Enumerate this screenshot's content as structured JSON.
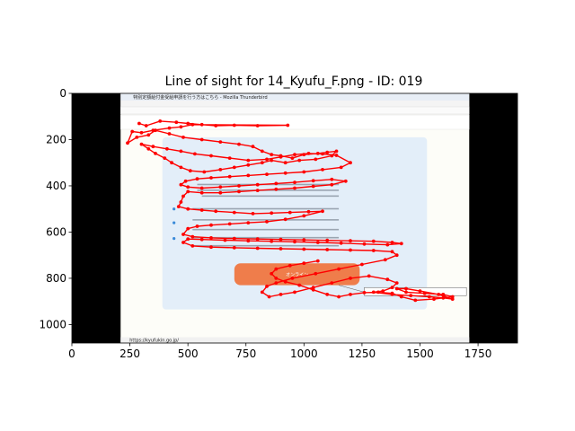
{
  "chart_data": {
    "type": "line",
    "title": "Line of sight for 14_Kyufu_F.png - ID: 019",
    "xlabel": "",
    "ylabel": "",
    "xlim": [
      0,
      1920
    ],
    "ylim": [
      1080,
      0
    ],
    "x_ticks": [
      0,
      250,
      500,
      750,
      1000,
      1250,
      1500,
      1750
    ],
    "y_ticks": [
      0,
      200,
      400,
      600,
      800,
      1000
    ],
    "background_image": {
      "x_range": [
        210,
        1712
      ],
      "y_range": [
        0,
        1080
      ],
      "letterbox_color": "#000000",
      "browser_title": "特別定額給付金受給申請を行う方はこちら - Mozilla Thunderbird",
      "status_url": "https://kyufukin.go.jp/",
      "button_label": "オンライン"
    },
    "series": [
      {
        "color": "#ff0000",
        "points": [
          [
            290,
            130
          ],
          [
            320,
            140
          ],
          [
            380,
            120
          ],
          [
            450,
            125
          ],
          [
            500,
            130
          ],
          [
            560,
            135
          ],
          [
            620,
            140
          ],
          [
            700,
            138
          ],
          [
            800,
            140
          ],
          [
            930,
            138
          ],
          [
            520,
            135
          ],
          [
            470,
            145
          ],
          [
            420,
            150
          ],
          [
            350,
            160
          ],
          [
            300,
            170
          ],
          [
            260,
            165
          ],
          [
            240,
            215
          ],
          [
            280,
            190
          ],
          [
            330,
            180
          ],
          [
            360,
            160
          ],
          [
            420,
            175
          ],
          [
            480,
            190
          ],
          [
            560,
            200
          ],
          [
            640,
            210
          ],
          [
            720,
            220
          ],
          [
            780,
            230
          ],
          [
            820,
            250
          ],
          [
            860,
            265
          ],
          [
            900,
            270
          ],
          [
            950,
            280
          ],
          [
            1000,
            265
          ],
          [
            1060,
            260
          ],
          [
            1100,
            255
          ],
          [
            1140,
            250
          ],
          [
            1120,
            270
          ],
          [
            1050,
            285
          ],
          [
            980,
            290
          ],
          [
            920,
            300
          ],
          [
            860,
            290
          ],
          [
            820,
            300
          ],
          [
            760,
            310
          ],
          [
            700,
            320
          ],
          [
            640,
            330
          ],
          [
            570,
            340
          ],
          [
            510,
            335
          ],
          [
            470,
            320
          ],
          [
            430,
            300
          ],
          [
            400,
            280
          ],
          [
            360,
            260
          ],
          [
            330,
            240
          ],
          [
            300,
            220
          ],
          [
            350,
            230
          ],
          [
            410,
            240
          ],
          [
            470,
            250
          ],
          [
            530,
            262
          ],
          [
            600,
            270
          ],
          [
            680,
            280
          ],
          [
            760,
            290
          ],
          [
            840,
            285
          ],
          [
            900,
            275
          ],
          [
            960,
            265
          ],
          [
            1020,
            260
          ],
          [
            1080,
            262
          ],
          [
            1140,
            268
          ],
          [
            1200,
            300
          ],
          [
            1160,
            320
          ],
          [
            1080,
            330
          ],
          [
            1000,
            340
          ],
          [
            920,
            345
          ],
          [
            840,
            350
          ],
          [
            760,
            355
          ],
          [
            680,
            360
          ],
          [
            600,
            365
          ],
          [
            540,
            370
          ],
          [
            490,
            380
          ],
          [
            470,
            395
          ],
          [
            500,
            405
          ],
          [
            560,
            410
          ],
          [
            640,
            405
          ],
          [
            720,
            400
          ],
          [
            800,
            395
          ],
          [
            880,
            390
          ],
          [
            960,
            385
          ],
          [
            1040,
            378
          ],
          [
            1120,
            372
          ],
          [
            1180,
            380
          ],
          [
            1120,
            395
          ],
          [
            1040,
            402
          ],
          [
            960,
            410
          ],
          [
            880,
            415
          ],
          [
            800,
            420
          ],
          [
            720,
            425
          ],
          [
            640,
            430
          ],
          [
            560,
            430
          ],
          [
            500,
            425
          ],
          [
            480,
            445
          ],
          [
            470,
            470
          ],
          [
            460,
            490
          ],
          [
            500,
            500
          ],
          [
            560,
            505
          ],
          [
            620,
            510
          ],
          [
            700,
            515
          ],
          [
            780,
            520
          ],
          [
            860,
            518
          ],
          [
            940,
            515
          ],
          [
            1020,
            512
          ],
          [
            1080,
            510
          ],
          [
            1000,
            530
          ],
          [
            920,
            545
          ],
          [
            840,
            555
          ],
          [
            760,
            560
          ],
          [
            680,
            565
          ],
          [
            600,
            570
          ],
          [
            540,
            575
          ],
          [
            500,
            585
          ],
          [
            480,
            610
          ],
          [
            520,
            620
          ],
          [
            600,
            625
          ],
          [
            700,
            628
          ],
          [
            800,
            630
          ],
          [
            900,
            632
          ],
          [
            1000,
            634
          ],
          [
            1100,
            636
          ],
          [
            1200,
            638
          ],
          [
            1300,
            640
          ],
          [
            1380,
            645
          ],
          [
            1420,
            650
          ],
          [
            1360,
            655
          ],
          [
            1260,
            652
          ],
          [
            1160,
            648
          ],
          [
            1060,
            645
          ],
          [
            960,
            642
          ],
          [
            860,
            640
          ],
          [
            760,
            638
          ],
          [
            660,
            635
          ],
          [
            560,
            632
          ],
          [
            500,
            630
          ],
          [
            480,
            645
          ],
          [
            520,
            660
          ],
          [
            600,
            665
          ],
          [
            700,
            668
          ],
          [
            800,
            670
          ],
          [
            900,
            672
          ],
          [
            1000,
            674
          ],
          [
            1100,
            676
          ],
          [
            1200,
            678
          ],
          [
            1300,
            680
          ],
          [
            1380,
            685
          ],
          [
            1400,
            700
          ],
          [
            1350,
            720
          ],
          [
            1250,
            740
          ],
          [
            1150,
            760
          ],
          [
            1050,
            780
          ],
          [
            950,
            800
          ],
          [
            880,
            820
          ],
          [
            840,
            835
          ],
          [
            820,
            860
          ],
          [
            850,
            880
          ],
          [
            900,
            870
          ],
          [
            960,
            860
          ],
          [
            1040,
            840
          ],
          [
            1120,
            820
          ],
          [
            1200,
            800
          ],
          [
            1280,
            790
          ],
          [
            1360,
            805
          ],
          [
            1400,
            820
          ],
          [
            1380,
            840
          ],
          [
            1340,
            855
          ],
          [
            1300,
            860
          ],
          [
            1380,
            870
          ],
          [
            1460,
            875
          ],
          [
            1540,
            880
          ],
          [
            1600,
            885
          ],
          [
            1640,
            890
          ],
          [
            1580,
            870
          ],
          [
            1500,
            855
          ],
          [
            1440,
            845
          ],
          [
            1400,
            845
          ],
          [
            1440,
            860
          ],
          [
            1520,
            865
          ],
          [
            1600,
            870
          ],
          [
            1640,
            880
          ],
          [
            1560,
            890
          ],
          [
            1480,
            895
          ],
          [
            1420,
            880
          ],
          [
            1380,
            865
          ],
          [
            1320,
            860
          ],
          [
            1260,
            862
          ],
          [
            1200,
            870
          ],
          [
            1150,
            880
          ],
          [
            1100,
            870
          ],
          [
            1040,
            850
          ],
          [
            980,
            830
          ],
          [
            920,
            815
          ],
          [
            880,
            800
          ],
          [
            860,
            780
          ],
          [
            880,
            760
          ],
          [
            940,
            745
          ],
          [
            1000,
            735
          ],
          [
            1060,
            725
          ]
        ]
      }
    ]
  }
}
